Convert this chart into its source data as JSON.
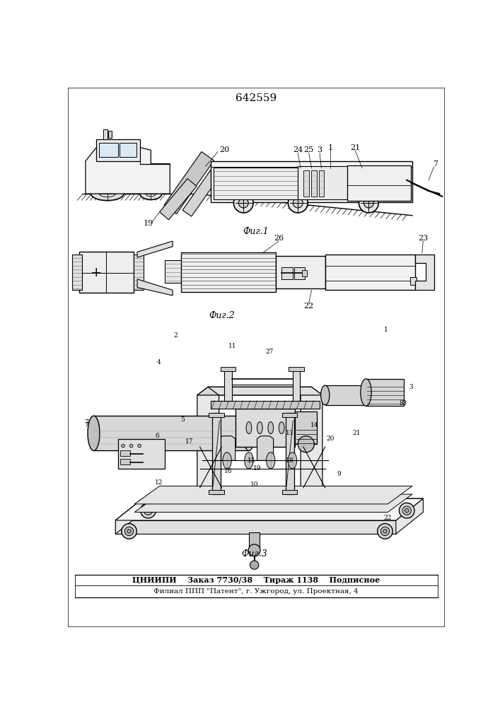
{
  "title_number": "642559",
  "fig1_label": "Фиг.1",
  "fig2_label": "Фиг.2",
  "fig3_label": "Фиг.3",
  "footer_line1": "ЦНИИПИ    Заказ 7730/38    Тираж 1138    Подписное",
  "footer_line2": "Филиал ППП \"Патент\", г. Ужгород, ул. Проектная, 4",
  "bg_color": "#ffffff",
  "lc": "#000000"
}
